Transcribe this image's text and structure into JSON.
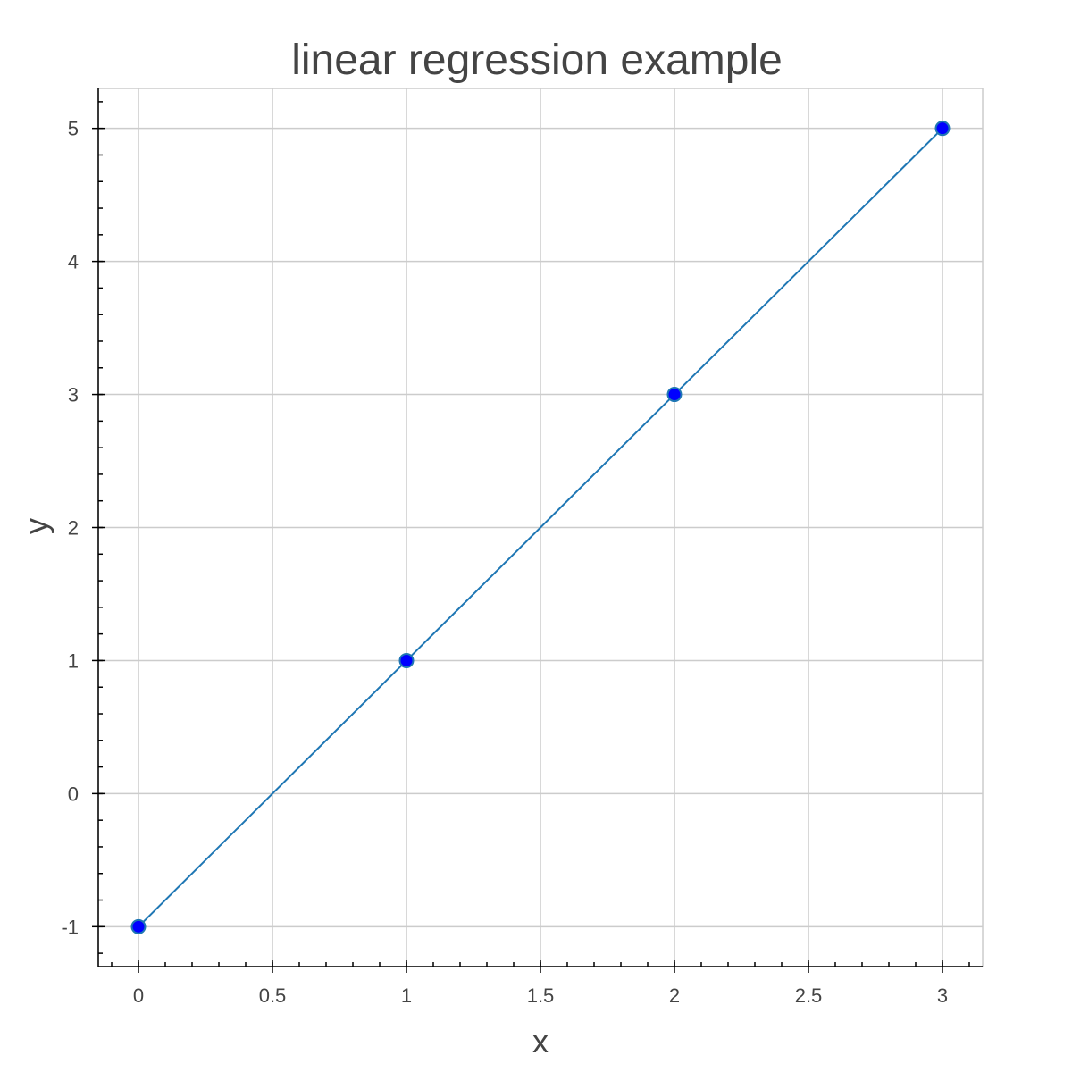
{
  "chart_data": {
    "type": "line",
    "title": "linear regression example",
    "xlabel": "x",
    "ylabel": "y",
    "xlim": [
      -0.15,
      3.15
    ],
    "ylim": [
      -1.3,
      5.3
    ],
    "x_ticks": [
      0,
      0.5,
      1,
      1.5,
      2,
      2.5,
      3
    ],
    "x_tick_labels": [
      "0",
      "0.5",
      "1",
      "1.5",
      "2",
      "2.5",
      "3"
    ],
    "y_ticks": [
      -1,
      0,
      1,
      2,
      3,
      4,
      5
    ],
    "y_tick_labels": [
      "-1",
      "0",
      "1",
      "2",
      "3",
      "4",
      "5"
    ],
    "grid": true,
    "series": [
      {
        "mode": "line+markers",
        "x": [
          0,
          1,
          2,
          3
        ],
        "y": [
          -1,
          1,
          3,
          5
        ],
        "line_color": "#1f77b4",
        "marker_fill": "#0000ff",
        "marker_edge": "#1f77b4"
      }
    ]
  }
}
